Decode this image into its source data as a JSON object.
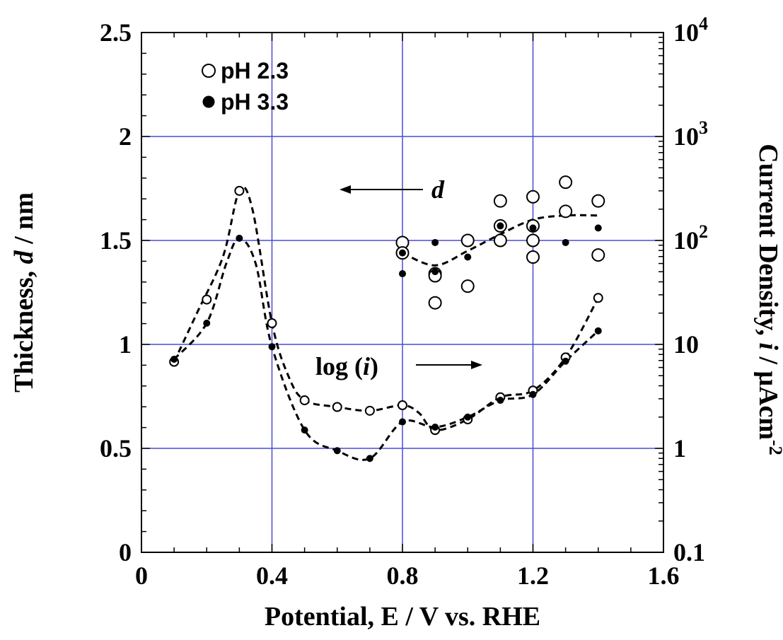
{
  "chart_data": {
    "type": "scatter",
    "x_axis": {
      "label": "Potential, E / V vs. RHE",
      "range": [
        0,
        1.6
      ],
      "ticks": [
        "0",
        "0.4",
        "0.8",
        "1.2",
        "1.6"
      ],
      "tick_values": [
        0,
        0.4,
        0.8,
        1.2,
        1.6
      ],
      "grid": true
    },
    "y_left": {
      "label_parts": [
        "Thickness, ",
        "d",
        " / nm"
      ],
      "range": [
        0,
        2.5
      ],
      "ticks": [
        "0",
        "0.5",
        "1",
        "1.5",
        "2",
        "2.5"
      ],
      "tick_values": [
        0,
        0.5,
        1,
        1.5,
        2,
        2.5
      ],
      "grid": true
    },
    "y_right": {
      "label_parts": [
        "Current Density, ",
        "i",
        " / μAcm",
        "-2"
      ],
      "scale": "log",
      "range": [
        0.1,
        10000
      ],
      "ticks": [
        {
          "base": "0.1",
          "exp": ""
        },
        {
          "base": "1",
          "exp": ""
        },
        {
          "base": "10",
          "exp": ""
        },
        {
          "base": "10",
          "exp": "2"
        },
        {
          "base": "10",
          "exp": "3"
        },
        {
          "base": "10",
          "exp": "4"
        }
      ],
      "tick_values": [
        0.1,
        1,
        10,
        100,
        1000,
        10000
      ]
    },
    "legend": {
      "placement": "top-left",
      "entries": [
        {
          "label": "pH 2.3",
          "marker": "open-circle"
        },
        {
          "label": "pH 3.3",
          "marker": "filled-circle"
        }
      ]
    },
    "annotations": [
      {
        "text": "d",
        "arrow": "left",
        "style": "italic"
      },
      {
        "text_parts": [
          "log (",
          "i",
          ")"
        ],
        "arrow": "right"
      }
    ],
    "series": [
      {
        "name": "pH 2.3",
        "quantity": "current density",
        "axis": "right",
        "marker": "open-circle",
        "x": [
          0.1,
          0.2,
          0.3,
          0.4,
          0.5,
          0.6,
          0.7,
          0.8,
          0.9,
          1.0,
          1.1,
          1.2,
          1.3,
          1.4
        ],
        "y": [
          6.8,
          27,
          300,
          16,
          2.9,
          2.5,
          2.3,
          2.6,
          1.5,
          1.9,
          3.1,
          3.6,
          7.5,
          28
        ]
      },
      {
        "name": "pH 3.3",
        "quantity": "current density",
        "axis": "right",
        "marker": "filled-circle",
        "x": [
          0.1,
          0.2,
          0.3,
          0.4,
          0.5,
          0.6,
          0.7,
          0.8,
          0.9,
          1.0,
          1.1,
          1.2,
          1.3,
          1.4
        ],
        "y": [
          7.2,
          16,
          105,
          9.5,
          1.5,
          0.95,
          0.8,
          1.8,
          1.6,
          2.0,
          2.9,
          3.3,
          6.9,
          13.5
        ]
      },
      {
        "name": "pH 2.3",
        "quantity": "thickness",
        "axis": "left",
        "marker": "open-circle",
        "size": "large",
        "x": [
          0.8,
          0.8,
          0.9,
          0.9,
          0.9,
          1.0,
          1.0,
          1.1,
          1.1,
          1.1,
          1.2,
          1.2,
          1.2,
          1.2,
          1.3,
          1.3,
          1.4,
          1.4
        ],
        "y": [
          1.49,
          1.44,
          1.34,
          1.33,
          1.2,
          1.5,
          1.28,
          1.69,
          1.57,
          1.5,
          1.71,
          1.57,
          1.5,
          1.42,
          1.78,
          1.64,
          1.69,
          1.43
        ]
      },
      {
        "name": "pH 3.3",
        "quantity": "thickness",
        "axis": "left",
        "marker": "filled-circle",
        "x": [
          0.8,
          0.8,
          0.9,
          0.9,
          1.0,
          1.1,
          1.2,
          1.3,
          1.4
        ],
        "y": [
          1.44,
          1.34,
          1.49,
          1.35,
          1.42,
          1.57,
          1.56,
          1.49,
          1.56
        ]
      }
    ],
    "trend_lines": [
      {
        "axis": "right",
        "x": [
          0.1,
          0.17,
          0.25,
          0.3,
          0.34,
          0.4,
          0.45,
          0.5,
          0.6,
          0.7,
          0.8,
          0.85,
          0.9,
          1.0,
          1.1,
          1.2,
          1.3,
          1.4
        ],
        "y": [
          6.8,
          20,
          70,
          300,
          200,
          16,
          5,
          2.9,
          2.5,
          2.3,
          2.6,
          2.2,
          1.5,
          1.9,
          3.1,
          3.6,
          7.5,
          28
        ]
      },
      {
        "axis": "right",
        "x": [
          0.1,
          0.2,
          0.26,
          0.3,
          0.35,
          0.4,
          0.5,
          0.6,
          0.7,
          0.8,
          0.9,
          1.0,
          1.1,
          1.2,
          1.3,
          1.4
        ],
        "y": [
          7.2,
          16,
          60,
          105,
          60,
          9.5,
          1.5,
          0.95,
          0.8,
          1.8,
          1.6,
          2.0,
          2.9,
          3.3,
          6.9,
          13.5
        ]
      },
      {
        "axis": "left",
        "x": [
          0.8,
          0.9,
          1.0,
          1.1,
          1.2,
          1.3,
          1.4
        ],
        "y": [
          1.44,
          1.38,
          1.45,
          1.53,
          1.6,
          1.62,
          1.62
        ]
      }
    ]
  }
}
